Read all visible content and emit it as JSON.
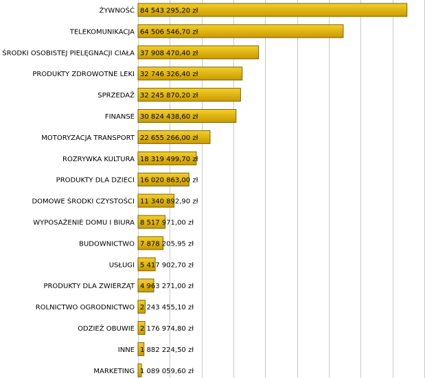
{
  "chart_data": {
    "type": "hbar",
    "categories": [
      "ŻYWNOŚĆ",
      "TELEKOMUNIKACJA",
      "ŚRODKI OSOBISTEJ PIELĘGNACJI CIAŁA",
      "PRODUKTY ZDROWOTNE LEKI",
      "SPRZEDAŻ",
      "FINANSE",
      "MOTORYZACJA TRANSPORT",
      "ROZRYWKA KULTURA",
      "PRODUKTY DLA DZIECI",
      "DOMOWE ŚRODKI CZYSTOŚCI",
      "WYPOSAŻENIE DOMU I BIURA",
      "BUDOWNICTWO",
      "USŁUGI",
      "PRODUKTY DLA ZWIERZĄT",
      "ROLNICTWO OGRODNICTWO",
      "ODZIEŻ OBUWIE",
      "INNE",
      "MARKETING"
    ],
    "values": [
      84543295.2,
      64506546.7,
      37908470.4,
      32746326.4,
      32245870.2,
      30824438.6,
      22655266.0,
      18319499.7,
      16020863.0,
      11340892.9,
      8517971.0,
      7878205.95,
      5417902.7,
      4963271.0,
      2243455.1,
      2176974.8,
      1882224.5,
      1089059.6
    ],
    "value_labels": [
      "84 543 295,20 zł",
      "64 506 546,70 zł",
      "37 908 470,40 zł",
      "32 746 326,40 zł",
      "32 245 870,20 zł",
      "30 824 438,60 zł",
      "22 655 266,00 zł",
      "18 319 499,70 zł",
      "16 020 863,00 zł",
      "11 340 892,90 zł",
      "8 517 971,00 zł",
      "7 878 205,95 zł",
      "5 417 902,70 zł",
      "4 963 271,00 zł",
      "2 243 455,10 zł",
      "2 176 974,80 zł",
      "1 882 224,50 zł",
      "1 089 059,60 zł"
    ],
    "color": "#e6b400",
    "xlim": [
      0,
      90000000
    ],
    "xticks": [
      0,
      10000000,
      20000000,
      30000000,
      40000000,
      50000000,
      60000000,
      70000000,
      80000000,
      90000000
    ],
    "grid": true
  }
}
